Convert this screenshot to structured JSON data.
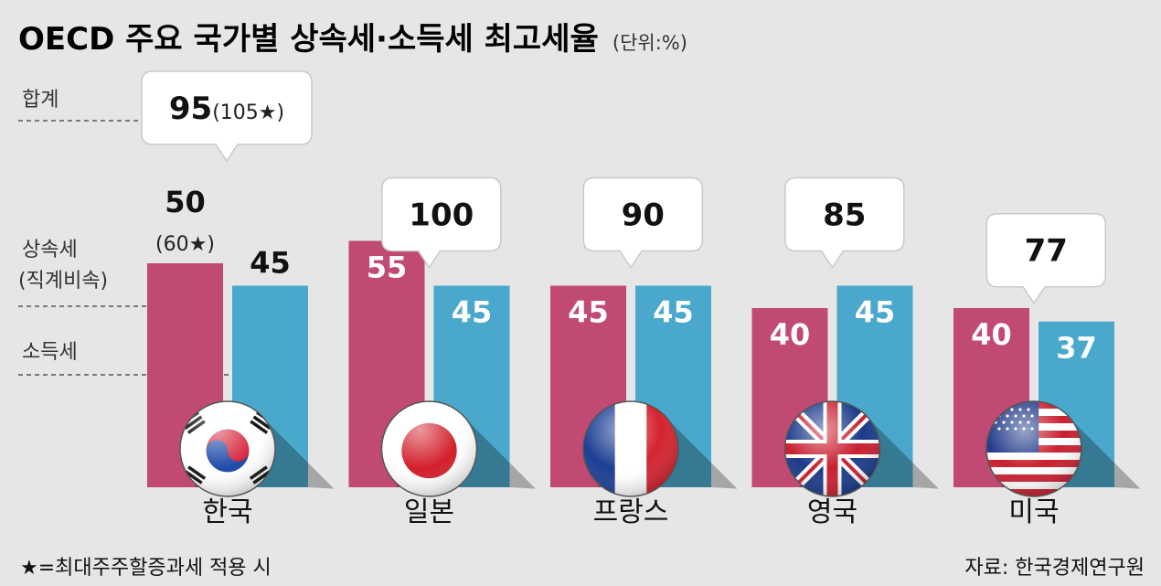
{
  "title": "OECD 주요 국가별 상속세·소득세 최고세율",
  "unit": "(단위:%)",
  "legend": {
    "total": "합계",
    "inheritance": "상속세",
    "inheritance_sub": "(직계비속)",
    "income": "소득세"
  },
  "footnote": "★=최대주주할증과세 적용 시",
  "source": "자료: 한국경제연구원",
  "colors": {
    "inheritance": "#c04a74",
    "income": "#4aa8cc",
    "background": "#e6e6e6"
  },
  "chart_data": {
    "type": "bar",
    "categories": [
      "한국",
      "일본",
      "프랑스",
      "영국",
      "미국"
    ],
    "series": [
      {
        "name": "상속세",
        "values": [
          50,
          55,
          45,
          40,
          40
        ]
      },
      {
        "name": "소득세",
        "values": [
          45,
          45,
          45,
          45,
          37
        ]
      }
    ],
    "totals": [
      "95",
      "100",
      "90",
      "85",
      "77"
    ],
    "total_notes": [
      "(105★)",
      "",
      "",
      "",
      ""
    ],
    "inheritance_notes": [
      "(60★)",
      "",
      "",
      "",
      ""
    ],
    "flags": [
      "korea-flag-icon",
      "japan-flag-icon",
      "france-flag-icon",
      "uk-flag-icon",
      "usa-flag-icon"
    ]
  }
}
